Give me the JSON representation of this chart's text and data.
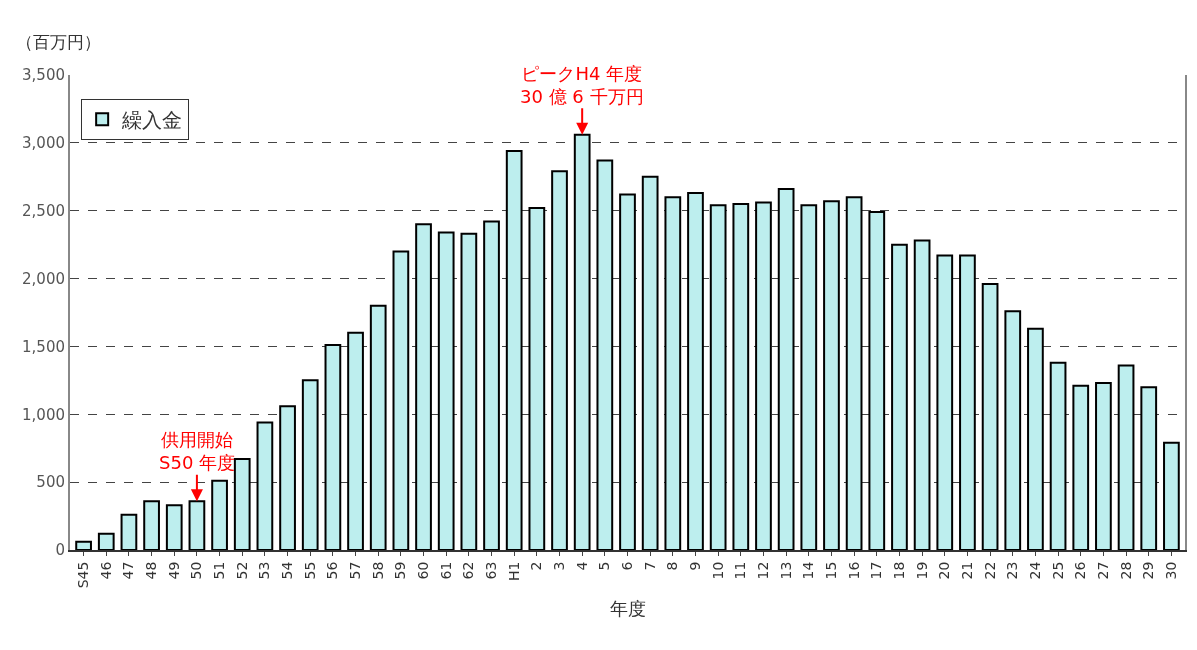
{
  "chart_data": {
    "type": "bar",
    "ylabel": "（百万円）",
    "xlabel": "年度",
    "categories": [
      "S45",
      "46",
      "47",
      "48",
      "49",
      "50",
      "51",
      "52",
      "53",
      "54",
      "55",
      "56",
      "57",
      "58",
      "59",
      "60",
      "61",
      "62",
      "63",
      "H1",
      "2",
      "3",
      "4",
      "5",
      "6",
      "7",
      "8",
      "9",
      "10",
      "11",
      "12",
      "13",
      "14",
      "15",
      "16",
      "17",
      "18",
      "19",
      "20",
      "21",
      "22",
      "23",
      "24",
      "25",
      "26",
      "27",
      "28",
      "29",
      "30"
    ],
    "series": [
      {
        "name": "繰入金",
        "color": "#bdeeee",
        "values": [
          60,
          120,
          260,
          360,
          330,
          360,
          510,
          670,
          940,
          1060,
          1250,
          1510,
          1600,
          1800,
          2200,
          2400,
          2340,
          2330,
          2420,
          2940,
          2520,
          2790,
          3060,
          2870,
          2620,
          2750,
          2600,
          2630,
          2540,
          2550,
          2560,
          2660,
          2540,
          2570,
          2600,
          2490,
          2250,
          2280,
          2170,
          2170,
          1960,
          1760,
          1630,
          1380,
          1210,
          1230,
          1360,
          1200,
          790
        ]
      }
    ],
    "ylim": [
      0,
      3500
    ],
    "yticks": [
      {
        "value": 0,
        "label": "0"
      },
      {
        "value": 500,
        "label": "500"
      },
      {
        "value": 1000,
        "label": "1,000"
      },
      {
        "value": 1500,
        "label": "1,500"
      },
      {
        "value": 2000,
        "label": "2,000"
      },
      {
        "value": 2500,
        "label": "2,500"
      },
      {
        "value": 3000,
        "label": "3,000"
      },
      {
        "value": 3500,
        "label": "3,500"
      }
    ],
    "grid": "y",
    "legend": "top left",
    "annotations": [
      {
        "text": "供用開始\nS50 年度",
        "x": "50",
        "y": 360
      },
      {
        "text": "ピークH4 年度\n30 億 6 千万円",
        "x": "4",
        "y": 3060
      }
    ]
  }
}
